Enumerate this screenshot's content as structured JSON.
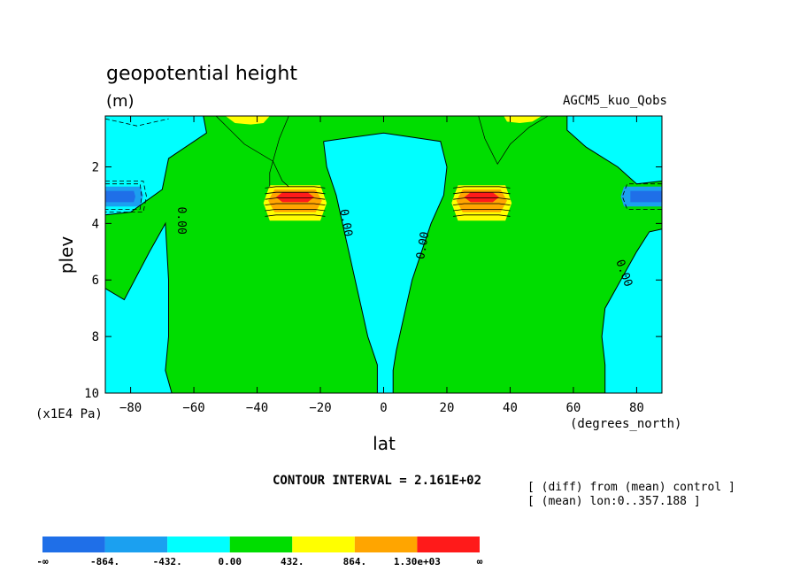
{
  "chart_data": {
    "type": "heatmap",
    "title": "geopotential height",
    "units": "(m)",
    "model_label": "AGCM5_kuo_Qobs",
    "xlabel": "lat",
    "x_units": "(degrees_north)",
    "ylabel": "plev",
    "y_units": "(x1E4 Pa)",
    "x_ticks": [
      "-80",
      "-60",
      "-40",
      "-20",
      "0",
      "20",
      "40",
      "60",
      "80"
    ],
    "y_ticks": [
      "2",
      "4",
      "6",
      "8",
      "10"
    ],
    "xlim": [
      -88,
      88
    ],
    "ylim": [
      10,
      0.2
    ],
    "contour_interval_text": "CONTOUR INTERVAL = 2.161E+02",
    "notes": [
      "[ (diff) from (mean) control ]",
      "[ (mean) lon:0..357.188 ]"
    ],
    "contour_labels": [
      "0.00",
      "0.00",
      "0.00",
      "0.00"
    ],
    "colorbar": {
      "labels": [
        "-∞",
        "-864.",
        "-432.",
        "0.00",
        "432.",
        "864.",
        "1.30e+03",
        "∞"
      ],
      "colors": [
        "#1f6fe8",
        "#1ba0f0",
        "#00ffff",
        "#00dd00",
        "#ffff00",
        "#ffa500",
        "#ff1a1a"
      ]
    },
    "colors": {
      "neg432": "#00ffff",
      "neg864": "#1ba0f0",
      "neglow": "#1f6fe8",
      "pos0": "#00dd00",
      "pos432": "#ffff00",
      "pos864": "#ffa500",
      "poshigh": "#ff1a1a"
    }
  }
}
